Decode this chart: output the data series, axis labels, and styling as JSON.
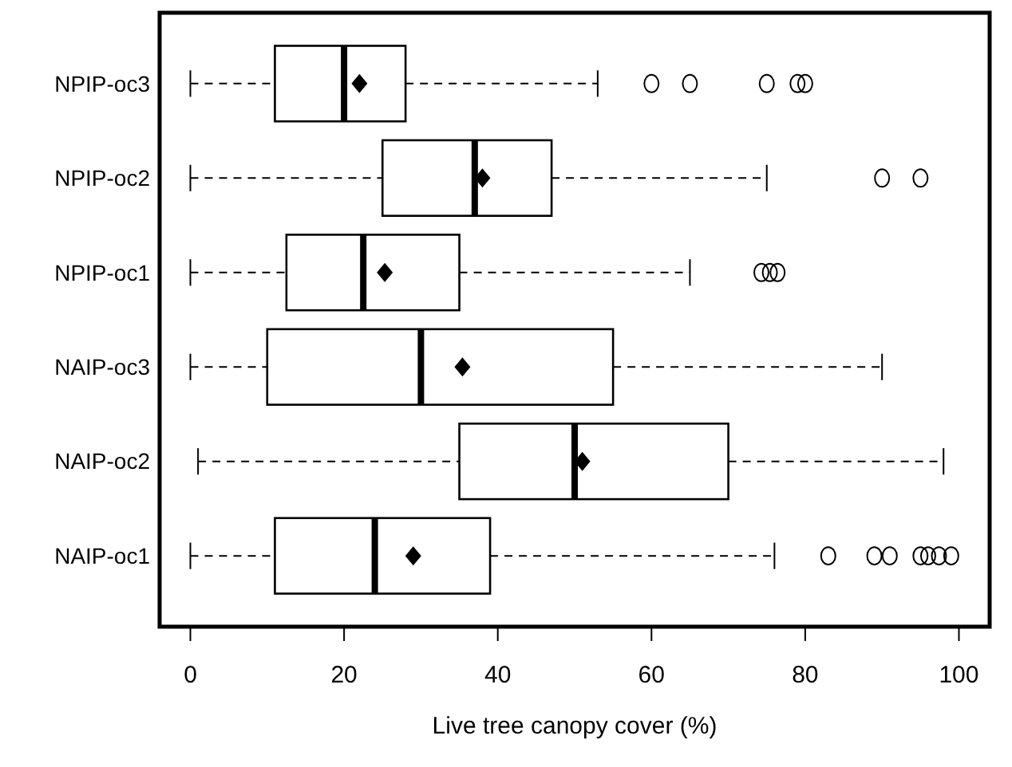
{
  "chart_data": {
    "type": "box",
    "orientation": "horizontal",
    "xlabel": "Live tree canopy cover (%)",
    "categories": [
      "NPIP-oc3",
      "NPIP-oc2",
      "NPIP-oc1",
      "NAIP-oc3",
      "NAIP-oc2",
      "NAIP-oc1"
    ],
    "boxes": [
      {
        "low": 0,
        "q1": 11,
        "median": 20,
        "q3": 28,
        "high": 53,
        "mean": 22,
        "outliers": [
          60,
          65,
          75,
          79,
          80
        ]
      },
      {
        "low": 0,
        "q1": 25,
        "median": 37,
        "q3": 47,
        "high": 75,
        "mean": 38,
        "outliers": [
          90,
          95
        ]
      },
      {
        "low": 0,
        "q1": 12.5,
        "median": 22.5,
        "q3": 35,
        "high": 65,
        "mean": 25.3,
        "outliers": [
          74.3,
          75.4,
          76.4
        ]
      },
      {
        "low": 0,
        "q1": 10,
        "median": 30,
        "q3": 55,
        "high": 90,
        "mean": 35.4
      },
      {
        "low": 1,
        "q1": 35,
        "median": 50,
        "q3": 70,
        "high": 98,
        "mean": 51
      },
      {
        "low": 0,
        "q1": 11,
        "median": 24,
        "q3": 39,
        "high": 76,
        "mean": 29,
        "outliers": [
          83,
          89,
          91,
          95,
          96,
          97.4,
          99
        ]
      }
    ],
    "xlim": [
      -4,
      104
    ],
    "xticks": [
      0,
      20,
      40,
      60,
      80,
      100
    ],
    "line_style": "dashed",
    "color": "#000000",
    "grid": false
  }
}
